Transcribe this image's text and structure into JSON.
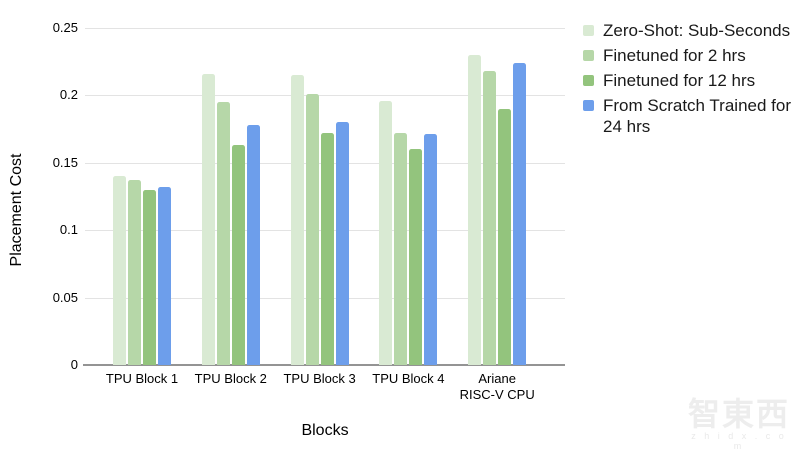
{
  "chart_data": {
    "type": "bar",
    "title": "",
    "xlabel": "Blocks",
    "ylabel": "Placement Cost",
    "ylim": [
      0,
      0.25
    ],
    "grid": true,
    "legend_position": "right",
    "yticks": [
      {
        "value": 0,
        "label": "0"
      },
      {
        "value": 0.05,
        "label": "0.05"
      },
      {
        "value": 0.1,
        "label": "0.1"
      },
      {
        "value": 0.15,
        "label": "0.15"
      },
      {
        "value": 0.2,
        "label": "0.2"
      },
      {
        "value": 0.25,
        "label": "0.25"
      }
    ],
    "categories": [
      "TPU Block 1",
      "TPU Block 2",
      "TPU Block 3",
      "TPU Block 4",
      "Ariane RISC-V CPU"
    ],
    "category_label_lines": [
      [
        "TPU Block 1"
      ],
      [
        "TPU Block 2"
      ],
      [
        "TPU Block 3"
      ],
      [
        "TPU Block 4"
      ],
      [
        "Ariane",
        "RISC-V CPU"
      ]
    ],
    "series": [
      {
        "name": "Zero-Shot: Sub-Seconds",
        "label_lines": [
          "Zero-Shot: Sub-Seconds"
        ],
        "color": "#d9ead3",
        "values": [
          0.14,
          0.216,
          0.215,
          0.196,
          0.23
        ]
      },
      {
        "name": "Finetuned for 2 hrs",
        "label_lines": [
          "Finetuned for 2 hrs"
        ],
        "color": "#b6d7a8",
        "values": [
          0.137,
          0.195,
          0.201,
          0.172,
          0.218
        ]
      },
      {
        "name": "Finetuned for 12 hrs",
        "label_lines": [
          "Finetuned for 12 hrs"
        ],
        "color": "#93c47d",
        "values": [
          0.13,
          0.163,
          0.172,
          0.16,
          0.19
        ]
      },
      {
        "name": "From Scratch Trained for 24 hrs",
        "label_lines": [
          "From Scratch Trained for",
          "24 hrs"
        ],
        "color": "#6d9eeb",
        "values": [
          0.132,
          0.178,
          0.18,
          0.171,
          0.224
        ]
      }
    ]
  },
  "colors": {
    "gridline": "#e3e3e3",
    "axis_line": "#949494",
    "text": "#000000",
    "watermark": "#ededed"
  },
  "watermark": {
    "logo_text": "智東西",
    "site_text": "z h i d x . c o m"
  }
}
